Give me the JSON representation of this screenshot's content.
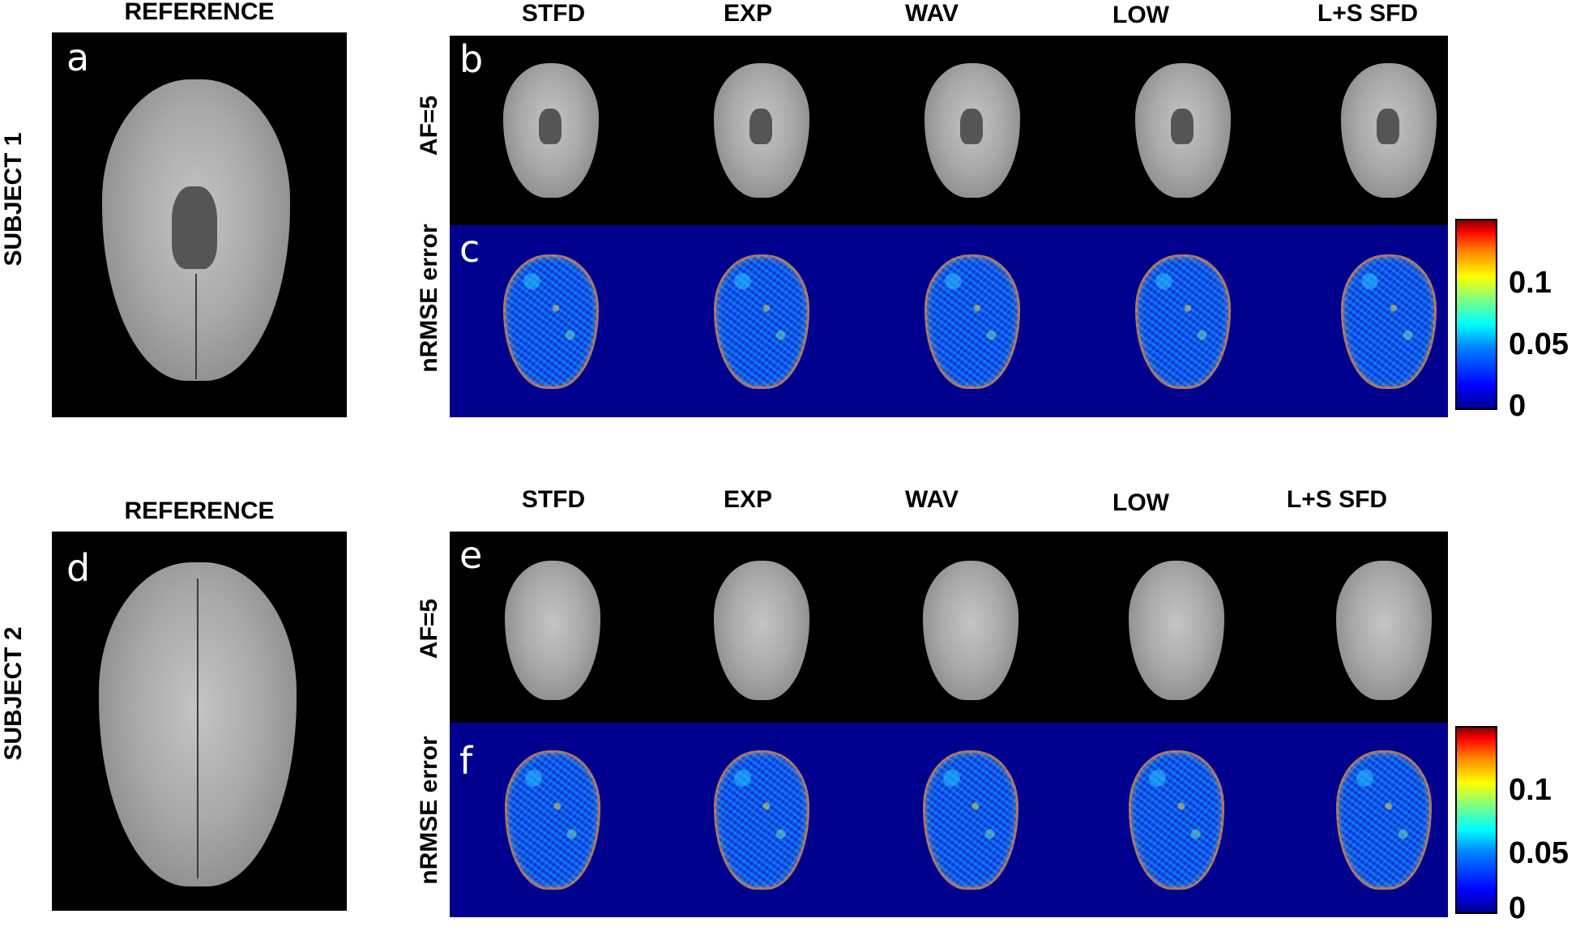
{
  "figure": {
    "subject1": {
      "row_label": "SUBJECT 1",
      "reference_header": "REFERENCE",
      "reference_letter": "a",
      "methods": [
        "STFD",
        "EXP",
        "WAV",
        "LOW",
        "L+S SFD"
      ],
      "recon_letter": "b",
      "recon_row_label": "AF=5",
      "error_letter": "c",
      "error_row_label": "nRMSE error",
      "colorbar_ticks": [
        "0.1",
        "0.05",
        "0"
      ]
    },
    "subject2": {
      "row_label": "SUBJECT 2",
      "reference_header": "REFERENCE",
      "reference_letter": "d",
      "methods": [
        "STFD",
        "EXP",
        "WAV",
        "LOW",
        "L+S SFD"
      ],
      "recon_letter": "e",
      "recon_row_label": "AF=5",
      "error_letter": "f",
      "error_row_label": "nRMSE error",
      "colorbar_ticks": [
        "0.1",
        "0.05",
        "0"
      ]
    },
    "colors": {
      "error_background": "#00008f",
      "colormap": "jet"
    }
  }
}
